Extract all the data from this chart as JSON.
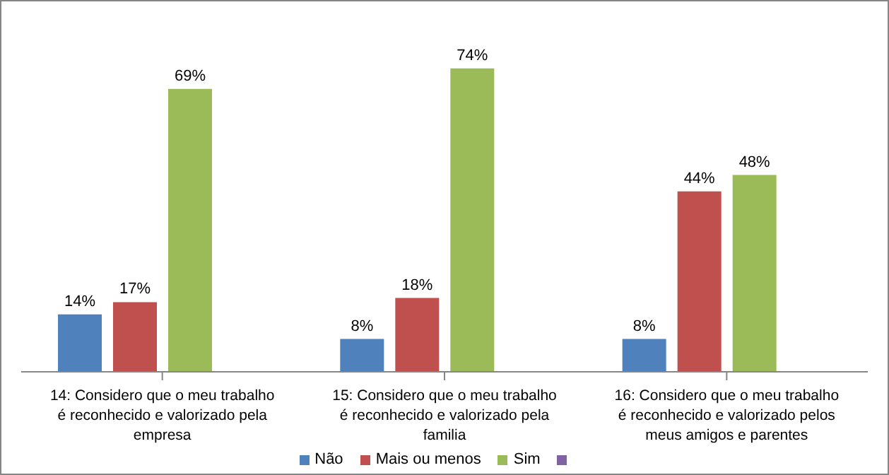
{
  "chart_data": {
    "type": "bar",
    "categories": [
      "14: Considero que o meu trabalho é reconhecido e valorizado pela empresa",
      "15: Considero que o meu trabalho é reconhecido e valorizado pela familia",
      "16: Considero que o meu trabalho é reconhecido e valorizado pelos meus amigos e parentes"
    ],
    "series": [
      {
        "name": "Não",
        "color": "#4f81bd",
        "values": [
          14,
          8,
          8
        ],
        "value_labels": [
          "14%",
          "8%",
          "8%"
        ]
      },
      {
        "name": "Mais ou menos",
        "color": "#c0504d",
        "values": [
          17,
          18,
          44
        ],
        "value_labels": [
          "17%",
          "18%",
          "44%"
        ]
      },
      {
        "name": "Sim",
        "color": "#9bbb59",
        "values": [
          69,
          74,
          48
        ],
        "value_labels": [
          "69%",
          "74%",
          "48%"
        ]
      },
      {
        "color": "#8064a2",
        "values": [
          null,
          null,
          null
        ]
      }
    ],
    "legend": "bottom",
    "grid": false
  }
}
